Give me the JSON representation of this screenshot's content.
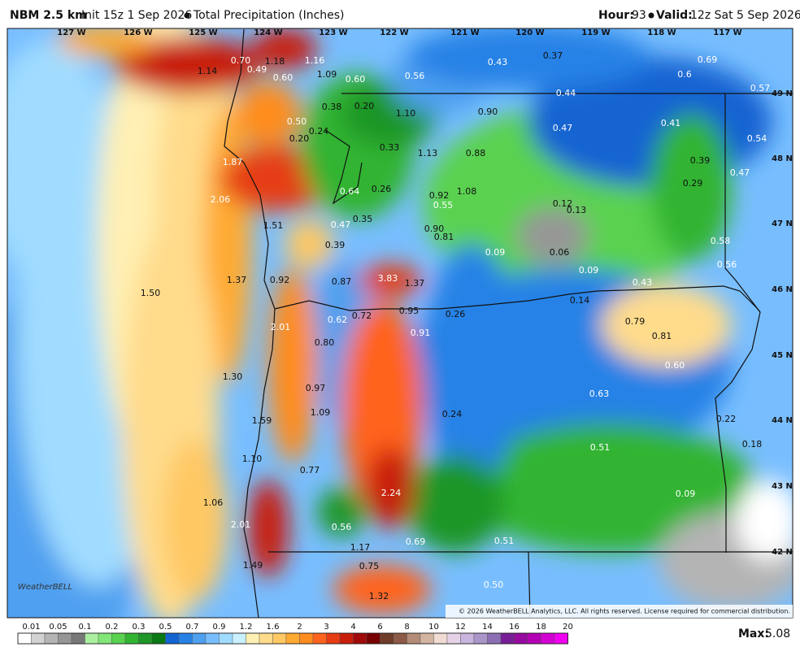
{
  "header": {
    "model": "NBM 2.5 km",
    "init": "Init 15z 1 Sep 2026",
    "product": "Total Precipitation (Inches)",
    "hour_label": "Hour:",
    "hour": "93",
    "valid_label": "Valid:",
    "valid": "12z Sat 5 Sep 2026"
  },
  "map": {
    "longitude_labels": [
      "127 W",
      "126 W",
      "125 W",
      "124 W",
      "123 W",
      "122 W",
      "121 W",
      "120 W",
      "119 W",
      "118 W",
      "117 W"
    ],
    "latitude_labels": [
      "49 N",
      "48 N",
      "47 N",
      "46 N",
      "45 N",
      "44 N",
      "43 N",
      "42 N"
    ],
    "point_labels": [
      "1.14",
      "0.70",
      "0.49",
      "1.18",
      "1.16",
      "1.09",
      "0.60",
      "0.60",
      "0.56",
      "0.43",
      "0.37",
      "0.69",
      "0.6",
      "0.57",
      "0.44",
      "0.38",
      "0.20",
      "1.10",
      "0.90",
      "0.50",
      "0.24",
      "0.47",
      "0.41",
      "0.20",
      "0.33",
      "1.13",
      "0.88",
      "0.54",
      "1.87",
      "0.39",
      "0.47",
      "0.29",
      "0.64",
      "0.26",
      "0.92",
      "1.08",
      "2.06",
      "0.55",
      "0.12",
      "0.13",
      "0.47",
      "0.35",
      "1.51",
      "0.90",
      "0.81",
      "0.58",
      "0.39",
      "0.09",
      "0.06",
      "0.09",
      "0.56",
      "1.37",
      "0.92",
      "0.87",
      "3.83",
      "1.37",
      "0.43",
      "1.50",
      "0.14",
      "0.72",
      "0.95",
      "0.26",
      "0.62",
      "2.01",
      "0.79",
      "0.91",
      "0.81",
      "0.80",
      "0.60",
      "1.30",
      "0.97",
      "0.63",
      "1.09",
      "1.59",
      "0.24",
      "0.22",
      "0.18",
      "0.51",
      "1.10",
      "0.77",
      "2.24",
      "0.09",
      "1.06",
      "2.01",
      "0.56",
      "0.69",
      "0.51",
      "1.17",
      "1.49",
      "0.75",
      "0.50",
      "1.32"
    ],
    "copyright": "© 2026 WeatherBELL Analytics, LLC. All rights reserved. License required for commercial distribution.",
    "logo": "WeatherBELL"
  },
  "colorbar": {
    "labels": [
      "0.01",
      "0.05",
      "0.1",
      "0.2",
      "0.3",
      "0.5",
      "0.7",
      "0.9",
      "1.2",
      "1.6",
      "2",
      "3",
      "4",
      "6",
      "8",
      "10",
      "12",
      "14",
      "16",
      "18",
      "20"
    ],
    "colors": [
      "#ffffff",
      "#d2d2d2",
      "#b4b4b4",
      "#969696",
      "#787878",
      "#aaf0a0",
      "#82e678",
      "#5ad250",
      "#32b432",
      "#1e9628",
      "#0a7814",
      "#1464d2",
      "#2882e6",
      "#50a0f0",
      "#78beff",
      "#a0dcff",
      "#c8f0ff",
      "#fff0b4",
      "#ffdc8c",
      "#ffc864",
      "#ffaa32",
      "#ff8c1e",
      "#ff641e",
      "#e63c14",
      "#c81e0a",
      "#a00a0a",
      "#780000",
      "#6e3c28",
      "#8c5a46",
      "#b48c78",
      "#d2b4a0",
      "#f0dcd2",
      "#e6d2e6",
      "#c8b4dc",
      "#aa96c8",
      "#8c6eb4",
      "#781e96",
      "#960aa0",
      "#b400b4",
      "#d200d2",
      "#f000f0"
    ]
  },
  "max": {
    "label": "Max:",
    "value": "5.08"
  }
}
